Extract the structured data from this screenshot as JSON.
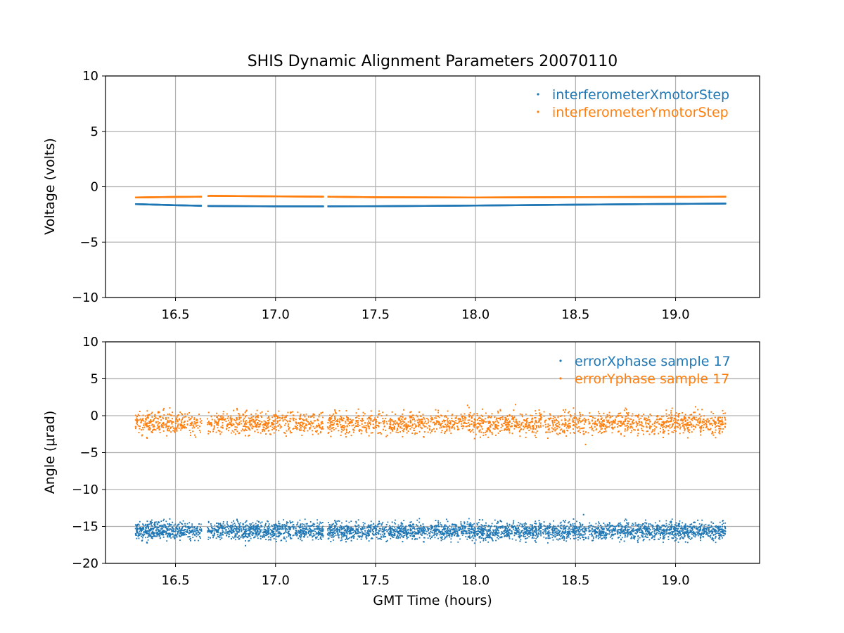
{
  "figure": {
    "title": "SHIS Dynamic Alignment Parameters 20070110"
  },
  "colors": {
    "series1": "#1f77b4",
    "series2": "#ff7f0e",
    "grid": "#b0b0b0",
    "axes": "#000000"
  },
  "chart_data": [
    {
      "type": "scatter",
      "ylabel": "Voltage (volts)",
      "xlabel": "",
      "xlim": [
        16.15,
        19.42
      ],
      "ylim": [
        -10,
        10
      ],
      "xticks": [
        "16.5",
        "17.0",
        "17.5",
        "18.0",
        "18.5",
        "19.0"
      ],
      "yticks": [
        "10",
        "5",
        "0",
        "−5",
        "−10"
      ],
      "grid": true,
      "legend_position": "top-right",
      "legend": [
        "interferometerXmotorStep",
        "interferometerYmotorStep"
      ],
      "series": [
        {
          "name": "interferometerXmotorStep",
          "x": [
            16.3,
            16.5,
            16.63,
            16.67,
            17.0,
            17.25,
            17.5,
            18.0,
            18.5,
            19.0,
            19.25
          ],
          "y": [
            -1.55,
            -1.65,
            -1.7,
            -1.72,
            -1.75,
            -1.75,
            -1.74,
            -1.68,
            -1.6,
            -1.53,
            -1.5
          ],
          "spread": 0.12,
          "gaps": [
            [
              16.63,
              16.66
            ],
            [
              17.24,
              17.26
            ]
          ]
        },
        {
          "name": "interferometerYmotorStep",
          "x": [
            16.3,
            16.5,
            16.63,
            16.67,
            17.0,
            17.25,
            17.5,
            18.0,
            18.5,
            19.0,
            19.25
          ],
          "y": [
            -0.95,
            -0.9,
            -0.88,
            -0.8,
            -0.85,
            -0.88,
            -0.93,
            -0.95,
            -0.92,
            -0.9,
            -0.88
          ],
          "spread": 0.12,
          "gaps": [
            [
              16.63,
              16.66
            ],
            [
              17.24,
              17.26
            ]
          ]
        }
      ]
    },
    {
      "type": "scatter",
      "ylabel": "Angle (μrad)",
      "xlabel": "GMT Time (hours)",
      "xlim": [
        16.15,
        19.42
      ],
      "ylim": [
        -20,
        10
      ],
      "xticks": [
        "16.5",
        "17.0",
        "17.5",
        "18.0",
        "18.5",
        "19.0"
      ],
      "yticks": [
        "10",
        "5",
        "0",
        "−5",
        "−10",
        "−15",
        "−20"
      ],
      "grid": true,
      "legend_position": "top-right",
      "legend": [
        "errorXphase sample 17",
        "errorYphase sample 17"
      ],
      "series": [
        {
          "name": "errorXphase sample 17",
          "x_range": [
            16.3,
            19.25
          ],
          "center": -15.6,
          "spread": 0.75,
          "gaps": [
            [
              16.63,
              16.66
            ],
            [
              17.24,
              17.26
            ]
          ],
          "outliers": [
            [
              18.54,
              -13.4
            ],
            [
              18.02,
              -14.1
            ],
            [
              16.85,
              -17.6
            ],
            [
              19.05,
              -17.1
            ]
          ]
        },
        {
          "name": "errorYphase sample 17",
          "x_range": [
            16.3,
            19.25
          ],
          "center": -1.0,
          "spread": 0.95,
          "gaps": [
            [
              16.63,
              16.66
            ],
            [
              17.24,
              17.26
            ]
          ],
          "outliers": [
            [
              18.55,
              -3.9
            ],
            [
              18.2,
              1.5
            ],
            [
              17.96,
              1.4
            ],
            [
              19.1,
              1.2
            ],
            [
              16.6,
              -2.9
            ]
          ]
        }
      ]
    }
  ]
}
